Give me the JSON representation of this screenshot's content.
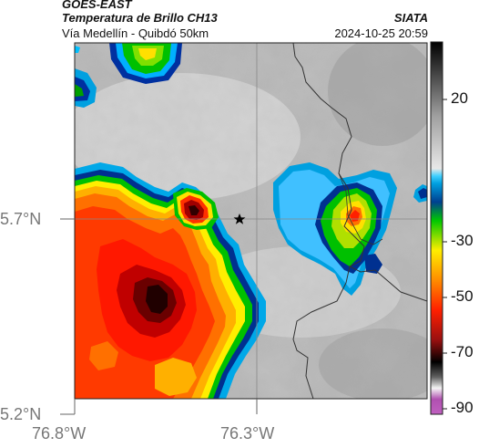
{
  "header": {
    "satellite": "GOES-EAST",
    "product": "Temperatura de Brillo CH13",
    "subtitle": "Vía Medellín - Quibdó 50km",
    "organization": "SIATA",
    "datetime": "2024-10-25 20:59"
  },
  "axes": {
    "lat_labels": [
      "5.7°N",
      "5.2°N"
    ],
    "lon_labels": [
      "76.8°W",
      "76.3°W"
    ]
  },
  "colorbar": {
    "tick_labels": [
      "20",
      "-30",
      "-50",
      "-70",
      "-90"
    ],
    "palette": [
      "#c060c0",
      "#f0f0f0",
      "#202020",
      "#ff3000",
      "#ffe000",
      "#00c000",
      "#00a0e0",
      "#d0d0d0",
      "#101010"
    ]
  },
  "markers": {
    "point": "star-icon"
  }
}
